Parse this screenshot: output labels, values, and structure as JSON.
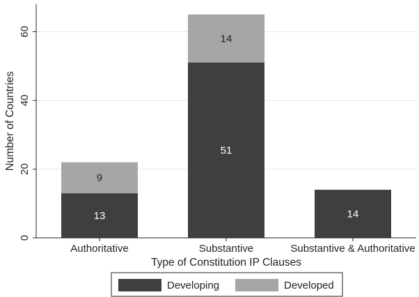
{
  "chart_data": {
    "type": "bar",
    "stacked": true,
    "xlabel": "Type of Constitution IP Clauses",
    "ylabel": "Number of Countries",
    "ylim": [
      0,
      68
    ],
    "yticks": [
      0,
      20,
      40,
      60
    ],
    "grid": true,
    "legend_position": "bottom",
    "categories": [
      "Authoritative",
      "Substantive",
      "Substantive & Authoritative"
    ],
    "series": [
      {
        "name": "Developing",
        "values": [
          13,
          51,
          14
        ],
        "color": "#3f3f3f",
        "label_color": "#ffffff"
      },
      {
        "name": "Developed",
        "values": [
          9,
          14,
          0
        ],
        "color": "#a6a6a6",
        "label_color": "#222222"
      }
    ]
  }
}
